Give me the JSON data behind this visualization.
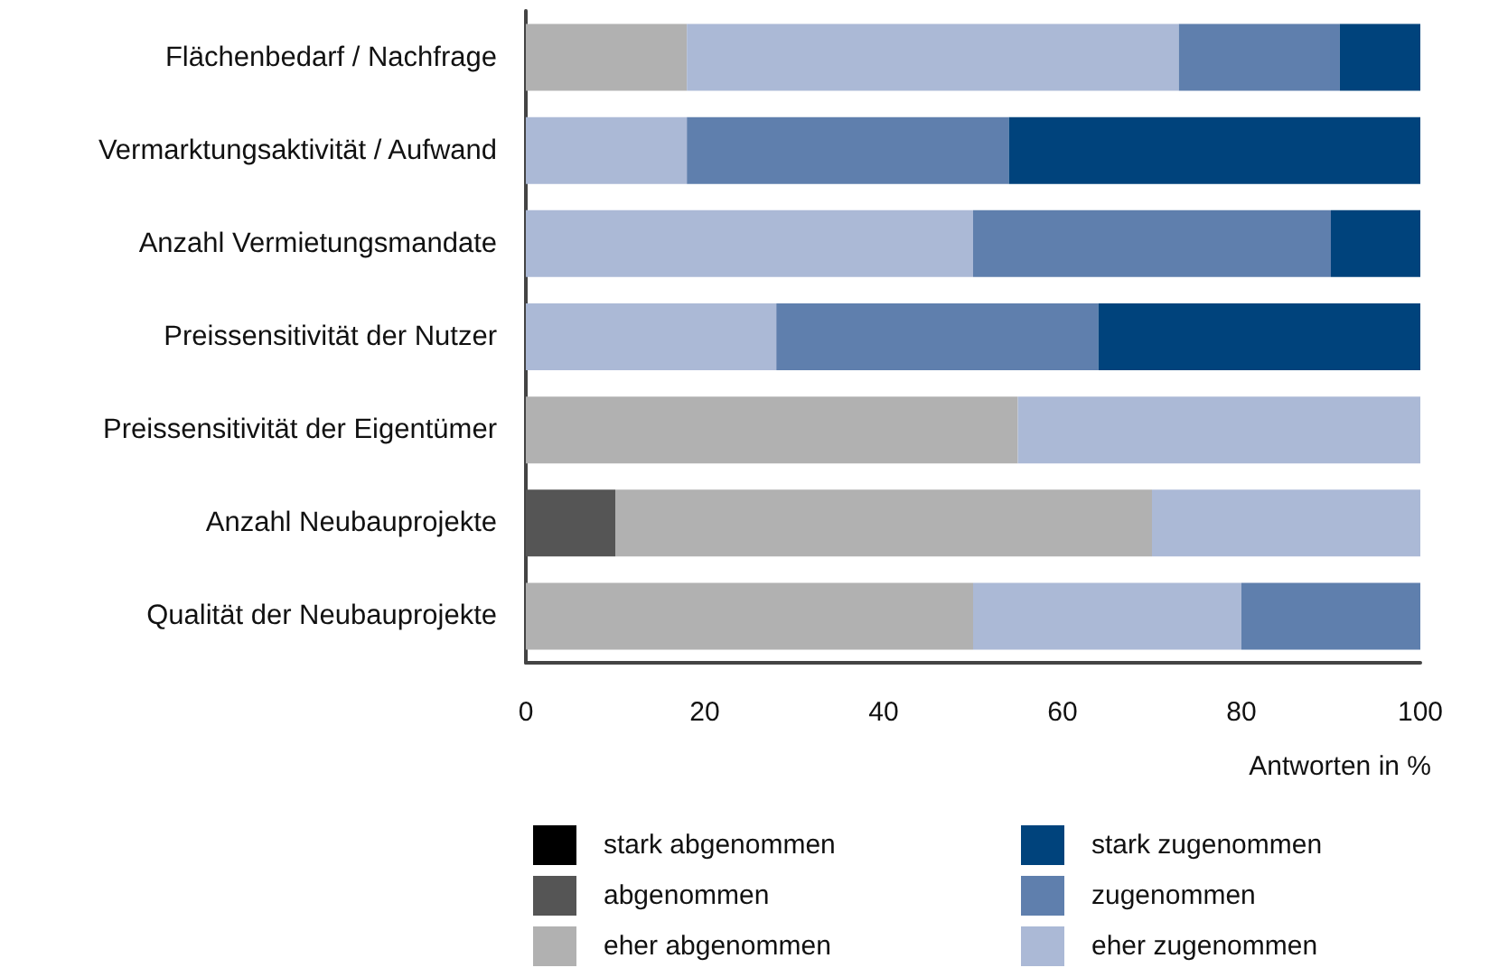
{
  "chart_data": {
    "type": "bar",
    "orientation": "horizontal",
    "stacked": true,
    "xlabel": "Antworten in %",
    "categories": [
      "Flächenbedarf / Nachfrage",
      "Vermarktungsaktivität / Aufwand",
      "Anzahl Vermietungsmandate",
      "Preissensitivität der Nutzer",
      "Preissensitivität der Eigentümer",
      "Anzahl Neubauprojekte",
      "Qualität der Neubauprojekte"
    ],
    "series": [
      {
        "name": "stark abgenommen",
        "color": "#000000",
        "values": [
          0,
          0,
          0,
          0,
          0,
          0,
          0
        ]
      },
      {
        "name": "abgenommen",
        "color": "#555555",
        "values": [
          0,
          0,
          0,
          0,
          0,
          10,
          0
        ]
      },
      {
        "name": "eher abgenommen",
        "color": "#b1b1b1",
        "values": [
          18,
          0,
          0,
          0,
          55,
          60,
          50
        ]
      },
      {
        "name": "eher zugenommen",
        "color": "#abb9d6",
        "values": [
          55,
          18,
          50,
          28,
          45,
          30,
          30
        ]
      },
      {
        "name": "zugenommen",
        "color": "#5f7fad",
        "values": [
          18,
          36,
          40,
          36,
          0,
          0,
          20
        ]
      },
      {
        "name": "stark zugenommen",
        "color": "#00437c",
        "values": [
          9,
          46,
          10,
          36,
          0,
          0,
          0
        ]
      }
    ],
    "xlim": [
      0,
      100
    ],
    "xticks": [
      0,
      20,
      40,
      60,
      80,
      100
    ],
    "grid": false,
    "legend": "bottom"
  }
}
